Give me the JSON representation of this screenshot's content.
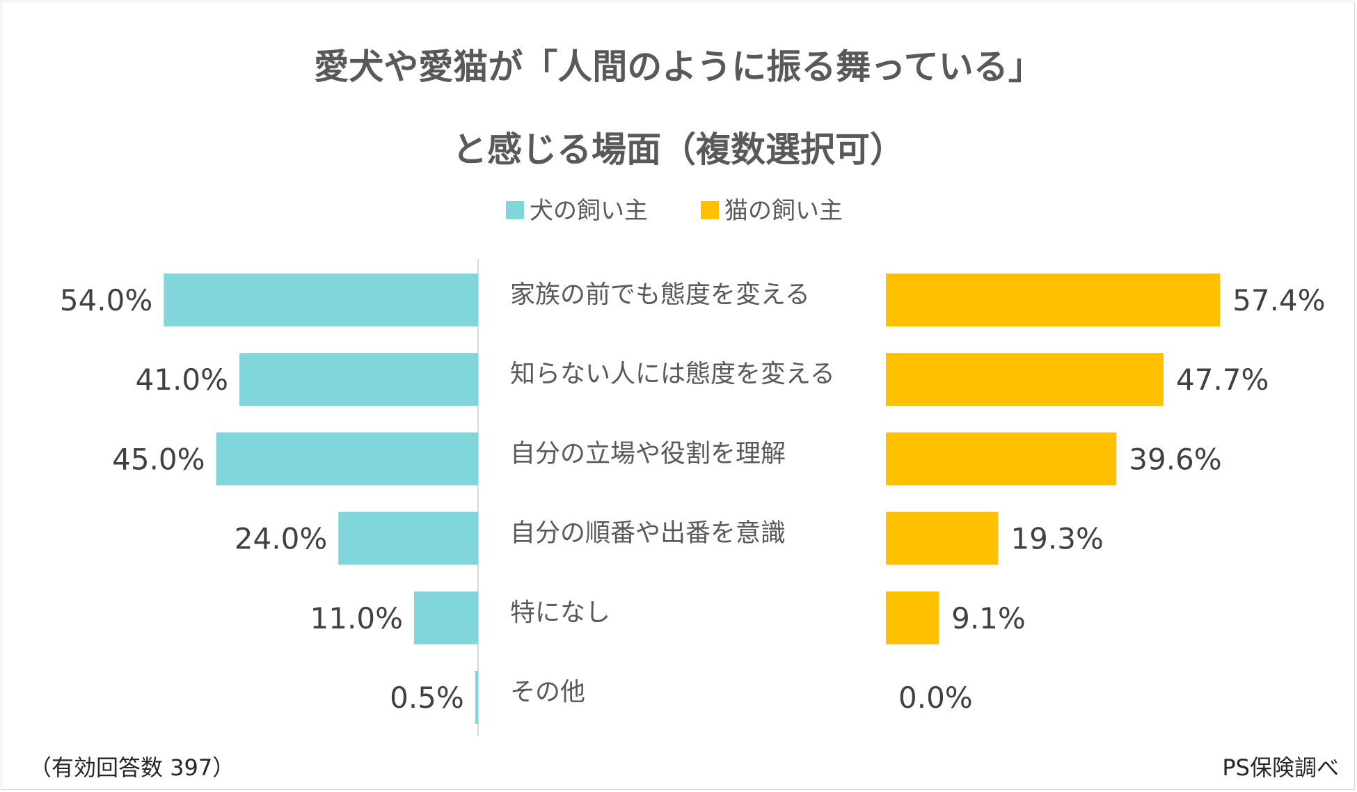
{
  "chart_data": {
    "type": "bar",
    "orientation": "horizontal-butterfly",
    "title_lines": [
      "愛犬や愛猫が「人間のように振る舞っている」",
      "と感じる場面（複数選択可）"
    ],
    "categories": [
      "家族の前でも態度を変える",
      "知らない人には態度を変える",
      "自分の立場や役割を理解",
      "自分の順番や出番を意識",
      "特になし",
      "その他"
    ],
    "series": [
      {
        "name": "犬の飼い主",
        "color": "#80d6da",
        "values": [
          54.0,
          41.0,
          45.0,
          24.0,
          11.0,
          0.5
        ],
        "labels": [
          "54.0%",
          "41.0%",
          "45.0%",
          "24.0%",
          "11.0%",
          "0.5%"
        ]
      },
      {
        "name": "猫の飼い主",
        "color": "#ffc000",
        "values": [
          57.4,
          47.7,
          39.6,
          19.3,
          9.1,
          0.0
        ],
        "labels": [
          "57.4%",
          "47.7%",
          "39.6%",
          "19.3%",
          "9.1%",
          "0.0%"
        ]
      }
    ],
    "unit": "%",
    "legend_position": "top-center",
    "grid": false,
    "footnote_left": "（有効回答数 397）",
    "footnote_right": "PS保険調べ"
  }
}
